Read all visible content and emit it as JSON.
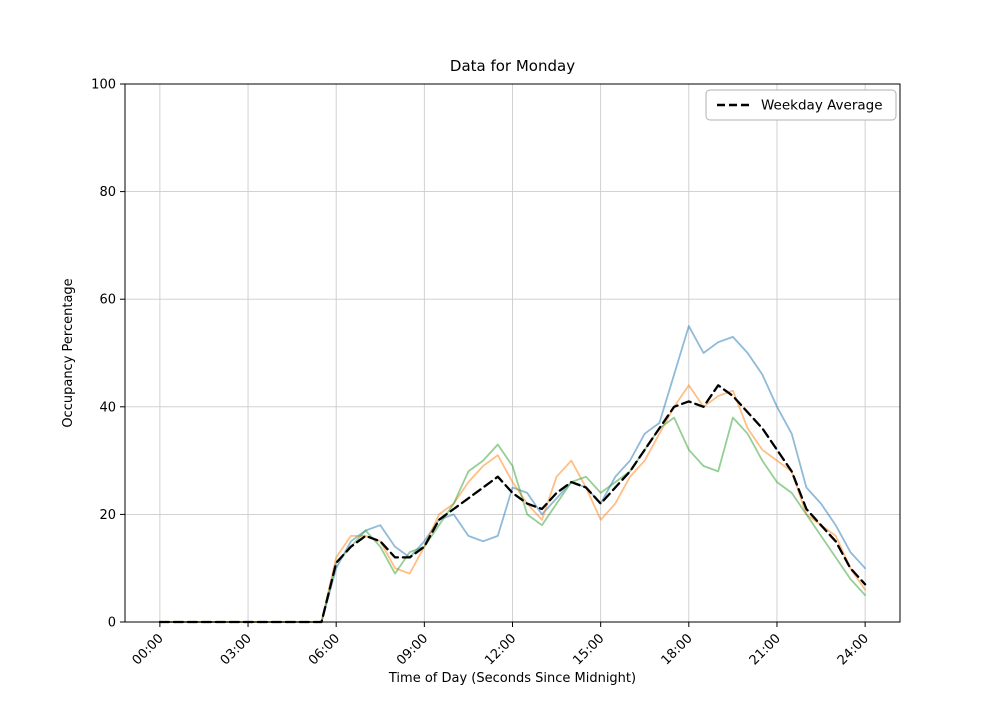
{
  "figure": {
    "background_color": "#ffffff",
    "frame_color": "#000000",
    "grid_color": "#cccccc"
  },
  "chart_data": {
    "type": "line",
    "title": "Data for Monday",
    "xlabel": "Time of Day (Seconds Since Midnight)",
    "ylabel": "Occupancy Percentage",
    "xlim_hours": [
      0,
      24
    ],
    "ylim": [
      0,
      100
    ],
    "grid": true,
    "legend": {
      "position": "upper right",
      "entries": [
        "Weekday Average"
      ],
      "sample_style": "dashed",
      "sample_color": "#000000"
    },
    "y_ticks": [
      0,
      20,
      40,
      60,
      80,
      100
    ],
    "x_ticks": [
      {
        "hours": 0,
        "label": "00:00"
      },
      {
        "hours": 3,
        "label": "03:00"
      },
      {
        "hours": 6,
        "label": "06:00"
      },
      {
        "hours": 9,
        "label": "09:00"
      },
      {
        "hours": 12,
        "label": "12:00"
      },
      {
        "hours": 15,
        "label": "15:00"
      },
      {
        "hours": 18,
        "label": "18:00"
      },
      {
        "hours": 21,
        "label": "21:00"
      },
      {
        "hours": 24,
        "label": "24:00"
      }
    ],
    "x_hours": [
      0,
      0.5,
      1,
      1.5,
      2,
      2.5,
      3,
      3.5,
      4,
      4.5,
      5,
      5.5,
      6,
      6.5,
      7,
      7.5,
      8,
      8.5,
      9,
      9.5,
      10,
      10.5,
      11,
      11.5,
      12,
      12.5,
      13,
      13.5,
      14,
      14.5,
      15,
      15.5,
      16,
      16.5,
      17,
      17.5,
      18,
      18.5,
      19,
      19.5,
      20,
      20.5,
      21,
      21.5,
      22,
      22.5,
      23,
      23.5,
      24
    ],
    "series": [
      {
        "id": "blue",
        "color": "#1f77b4",
        "alpha": 0.5,
        "style": "solid",
        "values": [
          0,
          0,
          0,
          0,
          0,
          0,
          0,
          0,
          0,
          0,
          0,
          0,
          10,
          15,
          17,
          18,
          14,
          12,
          15,
          19,
          20,
          16,
          15,
          16,
          25,
          24,
          20,
          23,
          26,
          25,
          22,
          27,
          30,
          35,
          37,
          46,
          55,
          50,
          52,
          53,
          50,
          46,
          40,
          35,
          25,
          22,
          18,
          13,
          10
        ]
      },
      {
        "id": "orange",
        "color": "#ff7f0e",
        "alpha": 0.5,
        "style": "solid",
        "values": [
          0,
          0,
          0,
          0,
          0,
          0,
          0,
          0,
          0,
          0,
          0,
          0,
          12,
          16,
          16,
          15,
          10,
          9,
          14,
          20,
          22,
          26,
          29,
          31,
          26,
          22,
          19,
          27,
          30,
          25,
          19,
          22,
          27,
          30,
          35,
          40,
          44,
          40,
          42,
          43,
          36,
          32,
          30,
          28,
          20,
          18,
          16,
          10,
          6
        ]
      },
      {
        "id": "green",
        "color": "#2ca02c",
        "alpha": 0.5,
        "style": "solid",
        "values": [
          0,
          0,
          0,
          0,
          0,
          0,
          0,
          0,
          0,
          0,
          0,
          0,
          11,
          14,
          17,
          14,
          9,
          13,
          14,
          18,
          22,
          28,
          30,
          33,
          29,
          20,
          18,
          22,
          26,
          27,
          24,
          26,
          28,
          32,
          36,
          38,
          32,
          29,
          28,
          38,
          35,
          30,
          26,
          24,
          20,
          16,
          12,
          8,
          5
        ]
      },
      {
        "id": "weekday-average",
        "name": "Weekday Average",
        "color": "#000000",
        "alpha": 1,
        "style": "dashed",
        "values": [
          0,
          0,
          0,
          0,
          0,
          0,
          0,
          0,
          0,
          0,
          0,
          0,
          11,
          14,
          16,
          15,
          12,
          12,
          14,
          19,
          21,
          23,
          25,
          27,
          24,
          22,
          21,
          24,
          26,
          25,
          22,
          25,
          28,
          32,
          36,
          40,
          41,
          40,
          44,
          42,
          39,
          36,
          32,
          28,
          21,
          18,
          15,
          10,
          7
        ]
      }
    ]
  }
}
